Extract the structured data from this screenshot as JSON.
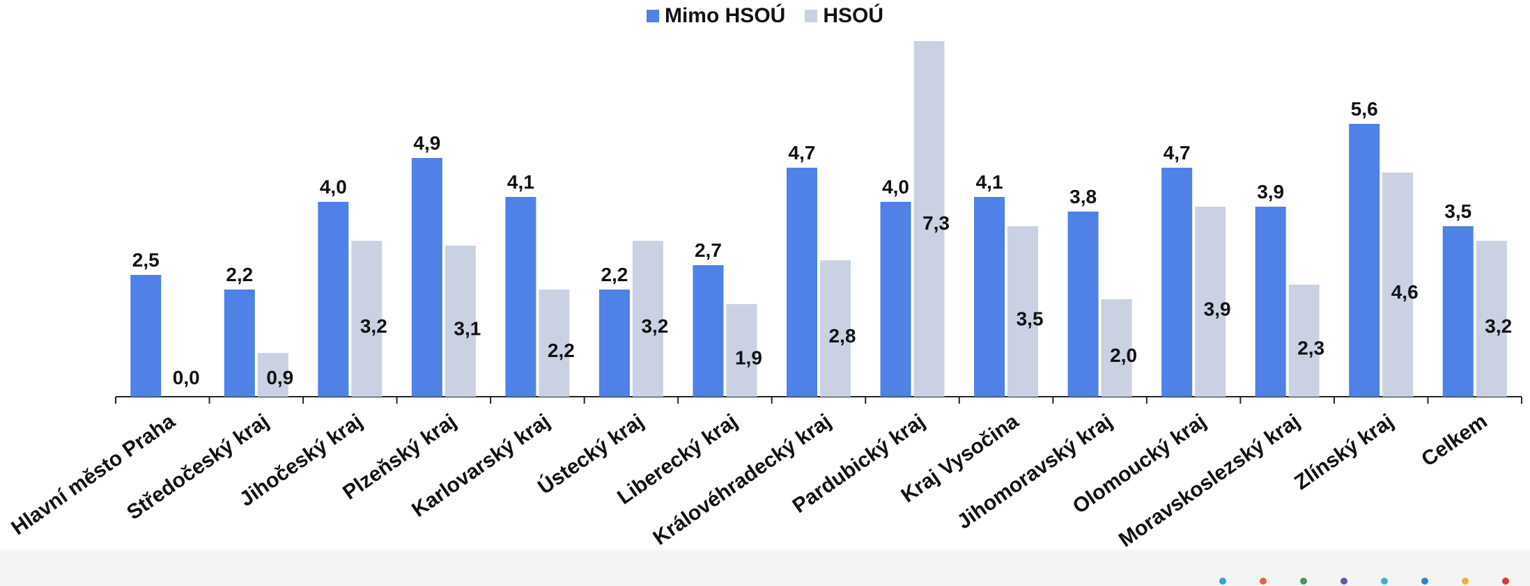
{
  "chart_data": {
    "type": "bar",
    "categories": [
      "Hlavní město Praha",
      "Středočeský kraj",
      "Jihočeský kraj",
      "Plzeňský kraj",
      "Karlovarský kraj",
      "Ústecký kraj",
      "Liberecký kraj",
      "Královéhradecký kraj",
      "Pardubický kraj",
      "Kraj Vysočina",
      "Jihomoravský kraj",
      "Olomoucký kraj",
      "Moravskoslezský kraj",
      "Zlínský kraj",
      "Celkem"
    ],
    "series": [
      {
        "name": "Mimo HSOÚ",
        "color": "#4f81e6",
        "values": [
          2.5,
          2.2,
          4.0,
          4.9,
          4.1,
          2.2,
          2.7,
          4.7,
          4.0,
          4.1,
          3.8,
          4.7,
          3.9,
          5.6,
          3.5
        ],
        "labels": [
          "2,5",
          "2,2",
          "4,0",
          "4,9",
          "4,1",
          "2,2",
          "2,7",
          "4,7",
          "4,0",
          "4,1",
          "3,8",
          "4,7",
          "3,9",
          "5,6",
          "3,5"
        ]
      },
      {
        "name": "HSOÚ",
        "color": "#c9d1e3",
        "values": [
          0.0,
          0.9,
          3.2,
          3.1,
          2.2,
          3.2,
          1.9,
          2.8,
          7.3,
          3.5,
          2.0,
          3.9,
          2.3,
          4.6,
          3.2
        ],
        "labels": [
          "0,0",
          "0,9",
          "3,2",
          "3,1",
          "2,2",
          "3,2",
          "1,9",
          "2,8",
          "7,3",
          "3,5",
          "2,0",
          "3,9",
          "2,3",
          "4,6",
          "3,2"
        ]
      }
    ],
    "legend_position": "top-center",
    "grid": false
  }
}
